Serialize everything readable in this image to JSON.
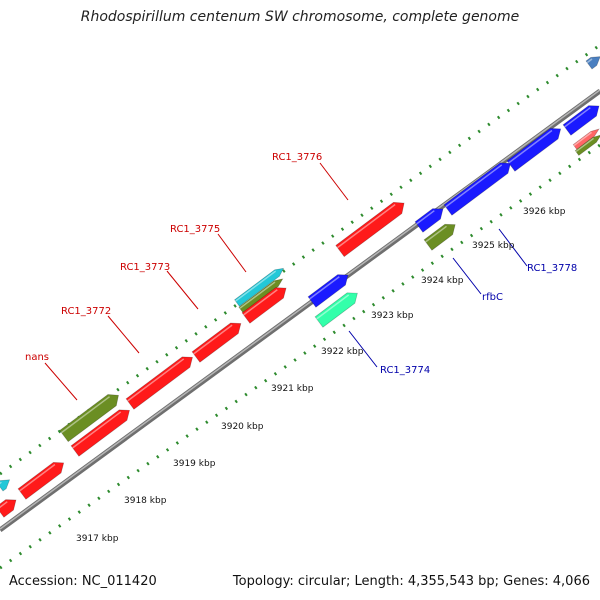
{
  "title": "Rhodospirillum centenum SW chromosome, complete genome",
  "footer": {
    "accession": "Accession: NC_011420",
    "summary": "Topology: circular; Length: 4,355,543 bp; Genes: 4,066"
  },
  "colors": {
    "forward_label": "#cc0000",
    "reverse_label": "#0000aa",
    "backbone": "#888888",
    "dotted_track": "#2e8b2e",
    "gene_red": "#ff1a1a",
    "gene_blue": "#1a1aff",
    "gene_olive": "#6b8e23",
    "gene_cyan": "#22c8d8",
    "gene_mint": "#33ffaa"
  },
  "gene_labels": [
    {
      "text": "RC1_3776",
      "strand": "forward"
    },
    {
      "text": "RC1_3775",
      "strand": "forward"
    },
    {
      "text": "RC1_3773",
      "strand": "forward"
    },
    {
      "text": "RC1_3772",
      "strand": "forward"
    },
    {
      "text": "nans",
      "strand": "forward"
    },
    {
      "text": "RC1_3778",
      "strand": "reverse"
    },
    {
      "text": "rfbC",
      "strand": "reverse"
    },
    {
      "text": "RC1_3774",
      "strand": "reverse"
    }
  ],
  "kbp_ticks": [
    "3917 kbp",
    "3918 kbp",
    "3919 kbp",
    "3920 kbp",
    "3921 kbp",
    "3922 kbp",
    "3923 kbp",
    "3924 kbp",
    "3925 kbp",
    "3926 kbp"
  ]
}
